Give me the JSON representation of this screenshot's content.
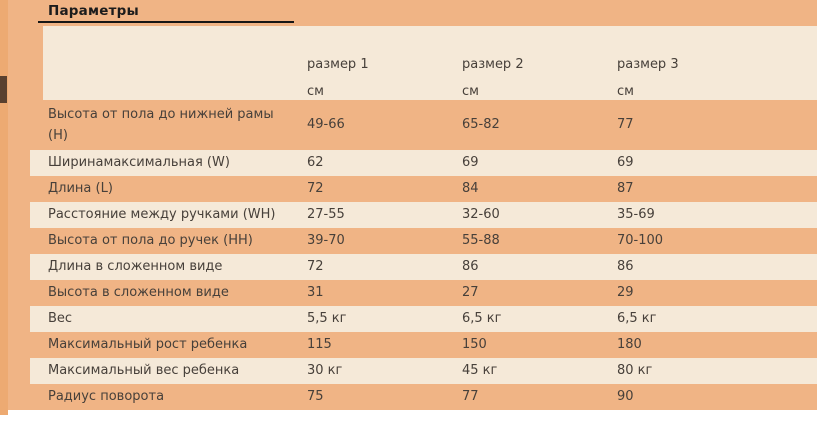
{
  "page": {
    "title": "Параметры",
    "colors": {
      "background_orange": "#f0b485",
      "stripe_light": "#f5e9d8",
      "left_strip": "#edaa72",
      "underline": "#161616",
      "text": "#47403a"
    }
  },
  "table": {
    "columns": [
      {
        "label": "размер 1",
        "unit": "см"
      },
      {
        "label": "размер 2",
        "unit": "см"
      },
      {
        "label": "размер 3",
        "unit": "см"
      }
    ],
    "rows": [
      {
        "label": "Высота от пола до нижней рамы\n(H)",
        "values": [
          "49-66",
          "65-82",
          "77"
        ],
        "tall": true
      },
      {
        "label": "Ширинамаксимальная (W)",
        "values": [
          "62",
          "69",
          "69"
        ]
      },
      {
        "label": "Длина (L)",
        "values": [
          "72",
          "84",
          "87"
        ]
      },
      {
        "label": "Расстояние между ручками (WH)",
        "values": [
          "27-55",
          "32-60",
          "35-69"
        ]
      },
      {
        "label": "Высота от пола до ручек (HH)",
        "values": [
          "39-70",
          "55-88",
          "70-100"
        ]
      },
      {
        "label": "Длина в сложенном виде",
        "values": [
          "72",
          "86",
          "86"
        ]
      },
      {
        "label": "Высота в сложенном виде",
        "values": [
          "31",
          "27",
          "29"
        ]
      },
      {
        "label": "Вес",
        "values": [
          "5,5 кг",
          "6,5 кг",
          "6,5 кг"
        ]
      },
      {
        "label": "Максимальный рост ребенка",
        "values": [
          "115",
          "150",
          "180"
        ]
      },
      {
        "label": "Максимальный вес ребенка",
        "values": [
          "30 кг",
          "45 кг",
          "80 кг"
        ]
      },
      {
        "label": "Радиус поворота",
        "values": [
          "75",
          "77",
          "90"
        ]
      }
    ]
  }
}
